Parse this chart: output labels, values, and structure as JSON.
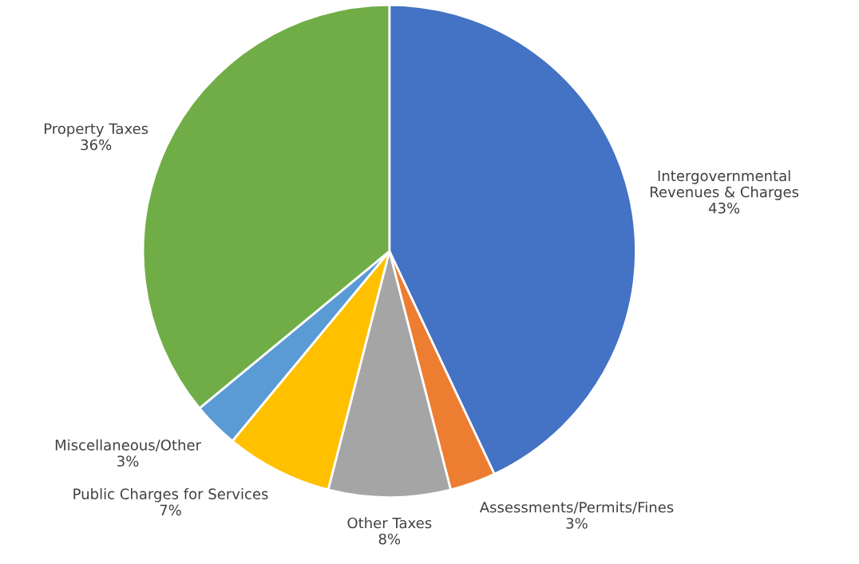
{
  "chart_data": {
    "type": "pie",
    "categories": [
      "Intergovernmental\nRevenues & Charges",
      "Assessments/Permits/Fines",
      "Other Taxes",
      "Public Charges for Services",
      "Miscellaneous/Other",
      "Property Taxes"
    ],
    "values": [
      43,
      3,
      8,
      7,
      3,
      36
    ],
    "value_labels": [
      "43%",
      "3%",
      "8%",
      "7%",
      "3%",
      "36%"
    ],
    "colors": [
      "#4472c4",
      "#ed7d31",
      "#a5a5a5",
      "#ffc000",
      "#5b9bd5",
      "#70ad47"
    ],
    "legend": false
  }
}
